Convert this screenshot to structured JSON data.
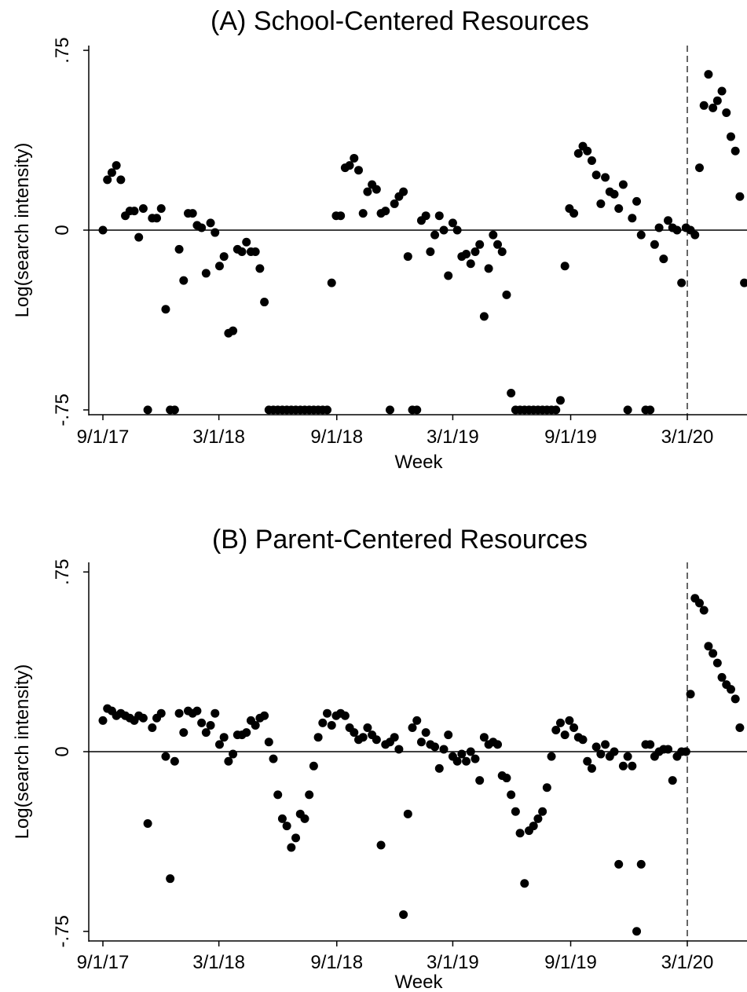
{
  "chart_data": [
    {
      "type": "scatter",
      "title": "(A) School-Centered Resources",
      "xlabel": "Week",
      "ylabel": "Log(search intensity)",
      "x_tick_labels": [
        "9/1/17",
        "3/1/18",
        "9/1/18",
        "3/1/19",
        "9/1/19",
        "3/1/20"
      ],
      "y_tick_labels": [
        "-.75",
        "0",
        ".75"
      ],
      "y_ticks": [
        -0.75,
        0,
        0.75
      ],
      "ylim": [
        -0.77,
        0.77
      ],
      "reference_lines": {
        "horizontal_y": 0,
        "vertical_dashed_x": "3/1/20"
      },
      "grid": false,
      "marker_color": "#000000",
      "points": [
        [
          "2017-09-01",
          0.0
        ],
        [
          "2017-09-08",
          0.21
        ],
        [
          "2017-09-15",
          0.24
        ],
        [
          "2017-09-22",
          0.27
        ],
        [
          "2017-09-29",
          0.21
        ],
        [
          "2017-10-06",
          0.06
        ],
        [
          "2017-10-13",
          0.08
        ],
        [
          "2017-10-20",
          0.08
        ],
        [
          "2017-10-27",
          -0.03
        ],
        [
          "2017-11-03",
          0.09
        ],
        [
          "2017-11-10",
          -0.75
        ],
        [
          "2017-11-17",
          0.05
        ],
        [
          "2017-11-24",
          0.05
        ],
        [
          "2017-12-01",
          0.09
        ],
        [
          "2017-12-08",
          -0.33
        ],
        [
          "2017-12-15",
          -0.75
        ],
        [
          "2017-12-22",
          -0.75
        ],
        [
          "2017-12-29",
          -0.08
        ],
        [
          "2018-01-05",
          -0.21
        ],
        [
          "2018-01-12",
          0.07
        ],
        [
          "2018-01-19",
          0.07
        ],
        [
          "2018-01-26",
          0.02
        ],
        [
          "2018-02-02",
          0.01
        ],
        [
          "2018-02-09",
          -0.18
        ],
        [
          "2018-02-16",
          0.03
        ],
        [
          "2018-02-23",
          -0.01
        ],
        [
          "2018-03-02",
          -0.15
        ],
        [
          "2018-03-09",
          -0.11
        ],
        [
          "2018-03-16",
          -0.43
        ],
        [
          "2018-03-23",
          -0.42
        ],
        [
          "2018-03-30",
          -0.08
        ],
        [
          "2018-04-06",
          -0.09
        ],
        [
          "2018-04-13",
          -0.05
        ],
        [
          "2018-04-20",
          -0.09
        ],
        [
          "2018-04-27",
          -0.09
        ],
        [
          "2018-05-04",
          -0.16
        ],
        [
          "2018-05-11",
          -0.3
        ],
        [
          "2018-05-18",
          -0.75
        ],
        [
          "2018-05-25",
          -0.75
        ],
        [
          "2018-06-01",
          -0.75
        ],
        [
          "2018-06-08",
          -0.75
        ],
        [
          "2018-06-15",
          -0.75
        ],
        [
          "2018-06-22",
          -0.75
        ],
        [
          "2018-06-29",
          -0.75
        ],
        [
          "2018-07-06",
          -0.75
        ],
        [
          "2018-07-13",
          -0.75
        ],
        [
          "2018-07-20",
          -0.75
        ],
        [
          "2018-07-27",
          -0.75
        ],
        [
          "2018-08-03",
          -0.75
        ],
        [
          "2018-08-10",
          -0.75
        ],
        [
          "2018-08-17",
          -0.75
        ],
        [
          "2018-08-24",
          -0.22
        ],
        [
          "2018-08-31",
          0.06
        ],
        [
          "2018-09-07",
          0.06
        ],
        [
          "2018-09-14",
          0.26
        ],
        [
          "2018-09-21",
          0.27
        ],
        [
          "2018-09-28",
          0.3
        ],
        [
          "2018-10-05",
          0.25
        ],
        [
          "2018-10-12",
          0.07
        ],
        [
          "2018-10-19",
          0.16
        ],
        [
          "2018-10-26",
          0.19
        ],
        [
          "2018-11-02",
          0.17
        ],
        [
          "2018-11-09",
          0.07
        ],
        [
          "2018-11-16",
          0.08
        ],
        [
          "2018-11-23",
          -0.75
        ],
        [
          "2018-11-30",
          0.11
        ],
        [
          "2018-12-07",
          0.14
        ],
        [
          "2018-12-14",
          0.16
        ],
        [
          "2018-12-21",
          -0.11
        ],
        [
          "2018-12-28",
          -0.75
        ],
        [
          "2019-01-04",
          -0.75
        ],
        [
          "2019-01-11",
          0.04
        ],
        [
          "2019-01-18",
          0.06
        ],
        [
          "2019-01-25",
          -0.09
        ],
        [
          "2019-02-01",
          -0.02
        ],
        [
          "2019-02-08",
          0.06
        ],
        [
          "2019-02-15",
          0.0
        ],
        [
          "2019-02-22",
          -0.19
        ],
        [
          "2019-03-01",
          0.03
        ],
        [
          "2019-03-08",
          0.0
        ],
        [
          "2019-03-15",
          -0.11
        ],
        [
          "2019-03-22",
          -0.1
        ],
        [
          "2019-03-29",
          -0.14
        ],
        [
          "2019-04-05",
          -0.09
        ],
        [
          "2019-04-12",
          -0.06
        ],
        [
          "2019-04-19",
          -0.36
        ],
        [
          "2019-04-26",
          -0.16
        ],
        [
          "2019-05-03",
          -0.02
        ],
        [
          "2019-05-10",
          -0.06
        ],
        [
          "2019-05-17",
          -0.09
        ],
        [
          "2019-05-24",
          -0.27
        ],
        [
          "2019-05-31",
          -0.68
        ],
        [
          "2019-06-07",
          -0.75
        ],
        [
          "2019-06-14",
          -0.75
        ],
        [
          "2019-06-21",
          -0.75
        ],
        [
          "2019-06-28",
          -0.75
        ],
        [
          "2019-07-05",
          -0.75
        ],
        [
          "2019-07-12",
          -0.75
        ],
        [
          "2019-07-19",
          -0.75
        ],
        [
          "2019-07-26",
          -0.75
        ],
        [
          "2019-08-02",
          -0.75
        ],
        [
          "2019-08-09",
          -0.75
        ],
        [
          "2019-08-16",
          -0.71
        ],
        [
          "2019-08-23",
          -0.15
        ],
        [
          "2019-08-30",
          0.09
        ],
        [
          "2019-09-06",
          0.07
        ],
        [
          "2019-09-13",
          0.32
        ],
        [
          "2019-09-20",
          0.35
        ],
        [
          "2019-09-27",
          0.33
        ],
        [
          "2019-10-04",
          0.29
        ],
        [
          "2019-10-11",
          0.23
        ],
        [
          "2019-10-18",
          0.11
        ],
        [
          "2019-10-25",
          0.22
        ],
        [
          "2019-11-01",
          0.16
        ],
        [
          "2019-11-08",
          0.15
        ],
        [
          "2019-11-15",
          0.09
        ],
        [
          "2019-11-22",
          0.19
        ],
        [
          "2019-11-29",
          -0.75
        ],
        [
          "2019-12-06",
          0.05
        ],
        [
          "2019-12-13",
          0.12
        ],
        [
          "2019-12-20",
          -0.02
        ],
        [
          "2019-12-27",
          -0.75
        ],
        [
          "2020-01-03",
          -0.75
        ],
        [
          "2020-01-10",
          -0.06
        ],
        [
          "2020-01-17",
          0.01
        ],
        [
          "2020-01-24",
          -0.12
        ],
        [
          "2020-01-31",
          0.04
        ],
        [
          "2020-02-07",
          0.01
        ],
        [
          "2020-02-14",
          0.0
        ],
        [
          "2020-02-21",
          -0.22
        ],
        [
          "2020-02-28",
          0.01
        ],
        [
          "2020-03-06",
          0.0
        ],
        [
          "2020-03-13",
          -0.02
        ],
        [
          "2020-03-20",
          0.26
        ],
        [
          "2020-03-27",
          0.52
        ],
        [
          "2020-04-03",
          0.65
        ],
        [
          "2020-04-10",
          0.51
        ],
        [
          "2020-04-17",
          0.54
        ],
        [
          "2020-04-24",
          0.58
        ],
        [
          "2020-05-01",
          0.49
        ],
        [
          "2020-05-08",
          0.39
        ],
        [
          "2020-05-15",
          0.33
        ],
        [
          "2020-05-22",
          0.14
        ],
        [
          "2020-05-29",
          -0.22
        ]
      ]
    },
    {
      "type": "scatter",
      "title": "(B) Parent-Centered Resources",
      "xlabel": "Week",
      "ylabel": "Log(search intensity)",
      "x_tick_labels": [
        "9/1/17",
        "3/1/18",
        "9/1/18",
        "3/1/19",
        "9/1/19",
        "3/1/20"
      ],
      "y_tick_labels": [
        "-.75",
        "0",
        ".75"
      ],
      "y_ticks": [
        -0.75,
        0,
        0.75
      ],
      "ylim": [
        -0.79,
        0.79
      ],
      "reference_lines": {
        "horizontal_y": 0,
        "vertical_dashed_x": "3/1/20"
      },
      "grid": false,
      "marker_color": "#000000",
      "points": [
        [
          "2017-09-01",
          0.13
        ],
        [
          "2017-09-08",
          0.18
        ],
        [
          "2017-09-15",
          0.17
        ],
        [
          "2017-09-22",
          0.15
        ],
        [
          "2017-09-29",
          0.16
        ],
        [
          "2017-10-06",
          0.15
        ],
        [
          "2017-10-13",
          0.14
        ],
        [
          "2017-10-20",
          0.13
        ],
        [
          "2017-10-27",
          0.15
        ],
        [
          "2017-11-03",
          0.14
        ],
        [
          "2017-11-10",
          -0.3
        ],
        [
          "2017-11-17",
          0.1
        ],
        [
          "2017-11-24",
          0.14
        ],
        [
          "2017-12-01",
          0.16
        ],
        [
          "2017-12-08",
          -0.02
        ],
        [
          "2017-12-15",
          -0.53
        ],
        [
          "2017-12-22",
          -0.04
        ],
        [
          "2017-12-29",
          0.16
        ],
        [
          "2018-01-05",
          0.08
        ],
        [
          "2018-01-12",
          0.17
        ],
        [
          "2018-01-19",
          0.16
        ],
        [
          "2018-01-26",
          0.17
        ],
        [
          "2018-02-02",
          0.12
        ],
        [
          "2018-02-09",
          0.08
        ],
        [
          "2018-02-16",
          0.11
        ],
        [
          "2018-02-23",
          0.16
        ],
        [
          "2018-03-02",
          0.03
        ],
        [
          "2018-03-09",
          0.06
        ],
        [
          "2018-03-16",
          -0.04
        ],
        [
          "2018-03-23",
          -0.01
        ],
        [
          "2018-03-30",
          0.07
        ],
        [
          "2018-04-06",
          0.07
        ],
        [
          "2018-04-13",
          0.08
        ],
        [
          "2018-04-20",
          0.13
        ],
        [
          "2018-04-27",
          0.11
        ],
        [
          "2018-05-04",
          0.14
        ],
        [
          "2018-05-11",
          0.15
        ],
        [
          "2018-05-18",
          0.04
        ],
        [
          "2018-05-25",
          -0.03
        ],
        [
          "2018-06-01",
          -0.18
        ],
        [
          "2018-06-08",
          -0.28
        ],
        [
          "2018-06-15",
          -0.31
        ],
        [
          "2018-06-22",
          -0.4
        ],
        [
          "2018-06-29",
          -0.36
        ],
        [
          "2018-07-06",
          -0.26
        ],
        [
          "2018-07-13",
          -0.28
        ],
        [
          "2018-07-20",
          -0.18
        ],
        [
          "2018-07-27",
          -0.06
        ],
        [
          "2018-08-03",
          0.06
        ],
        [
          "2018-08-10",
          0.12
        ],
        [
          "2018-08-17",
          0.16
        ],
        [
          "2018-08-24",
          0.11
        ],
        [
          "2018-08-31",
          0.15
        ],
        [
          "2018-09-07",
          0.16
        ],
        [
          "2018-09-14",
          0.15
        ],
        [
          "2018-09-21",
          0.1
        ],
        [
          "2018-09-28",
          0.08
        ],
        [
          "2018-10-05",
          0.05
        ],
        [
          "2018-10-12",
          0.06
        ],
        [
          "2018-10-19",
          0.1
        ],
        [
          "2018-10-26",
          0.07
        ],
        [
          "2018-11-02",
          0.05
        ],
        [
          "2018-11-09",
          -0.39
        ],
        [
          "2018-11-16",
          0.03
        ],
        [
          "2018-11-23",
          0.04
        ],
        [
          "2018-11-30",
          0.06
        ],
        [
          "2018-12-07",
          0.01
        ],
        [
          "2018-12-14",
          -0.68
        ],
        [
          "2018-12-21",
          -0.26
        ],
        [
          "2018-12-28",
          0.1
        ],
        [
          "2019-01-04",
          0.13
        ],
        [
          "2019-01-11",
          0.04
        ],
        [
          "2019-01-18",
          0.08
        ],
        [
          "2019-01-25",
          0.03
        ],
        [
          "2019-02-01",
          0.02
        ],
        [
          "2019-02-08",
          -0.07
        ],
        [
          "2019-02-15",
          0.01
        ],
        [
          "2019-02-22",
          0.07
        ],
        [
          "2019-03-01",
          -0.02
        ],
        [
          "2019-03-08",
          -0.04
        ],
        [
          "2019-03-15",
          -0.01
        ],
        [
          "2019-03-22",
          -0.04
        ],
        [
          "2019-03-29",
          0.0
        ],
        [
          "2019-04-05",
          -0.03
        ],
        [
          "2019-04-12",
          -0.12
        ],
        [
          "2019-04-19",
          0.06
        ],
        [
          "2019-04-26",
          0.03
        ],
        [
          "2019-05-03",
          0.04
        ],
        [
          "2019-05-10",
          0.03
        ],
        [
          "2019-05-17",
          -0.1
        ],
        [
          "2019-05-24",
          -0.11
        ],
        [
          "2019-05-31",
          -0.18
        ],
        [
          "2019-06-07",
          -0.25
        ],
        [
          "2019-06-14",
          -0.34
        ],
        [
          "2019-06-21",
          -0.55
        ],
        [
          "2019-06-28",
          -0.33
        ],
        [
          "2019-07-05",
          -0.31
        ],
        [
          "2019-07-12",
          -0.28
        ],
        [
          "2019-07-19",
          -0.25
        ],
        [
          "2019-07-26",
          -0.15
        ],
        [
          "2019-08-02",
          -0.02
        ],
        [
          "2019-08-09",
          0.09
        ],
        [
          "2019-08-16",
          0.12
        ],
        [
          "2019-08-23",
          0.07
        ],
        [
          "2019-08-30",
          0.13
        ],
        [
          "2019-09-06",
          0.1
        ],
        [
          "2019-09-13",
          0.06
        ],
        [
          "2019-09-20",
          0.05
        ],
        [
          "2019-09-27",
          -0.04
        ],
        [
          "2019-10-04",
          -0.07
        ],
        [
          "2019-10-11",
          0.02
        ],
        [
          "2019-10-18",
          -0.01
        ],
        [
          "2019-10-25",
          0.03
        ],
        [
          "2019-11-01",
          -0.02
        ],
        [
          "2019-11-08",
          0.0
        ],
        [
          "2019-11-15",
          -0.47
        ],
        [
          "2019-11-22",
          -0.06
        ],
        [
          "2019-11-29",
          -0.02
        ],
        [
          "2019-12-06",
          -0.06
        ],
        [
          "2019-12-13",
          -0.75
        ],
        [
          "2019-12-20",
          -0.47
        ],
        [
          "2019-12-27",
          0.03
        ],
        [
          "2020-01-03",
          0.03
        ],
        [
          "2020-01-10",
          -0.02
        ],
        [
          "2020-01-17",
          0.0
        ],
        [
          "2020-01-24",
          0.01
        ],
        [
          "2020-01-31",
          0.01
        ],
        [
          "2020-02-07",
          -0.12
        ],
        [
          "2020-02-14",
          -0.02
        ],
        [
          "2020-02-21",
          0.0
        ],
        [
          "2020-02-28",
          0.0
        ],
        [
          "2020-03-06",
          0.24
        ],
        [
          "2020-03-13",
          0.64
        ],
        [
          "2020-03-20",
          0.62
        ],
        [
          "2020-03-27",
          0.59
        ],
        [
          "2020-04-03",
          0.44
        ],
        [
          "2020-04-10",
          0.41
        ],
        [
          "2020-04-17",
          0.37
        ],
        [
          "2020-04-24",
          0.31
        ],
        [
          "2020-05-01",
          0.28
        ],
        [
          "2020-05-08",
          0.26
        ],
        [
          "2020-05-15",
          0.22
        ],
        [
          "2020-05-22",
          0.1
        ]
      ]
    }
  ]
}
